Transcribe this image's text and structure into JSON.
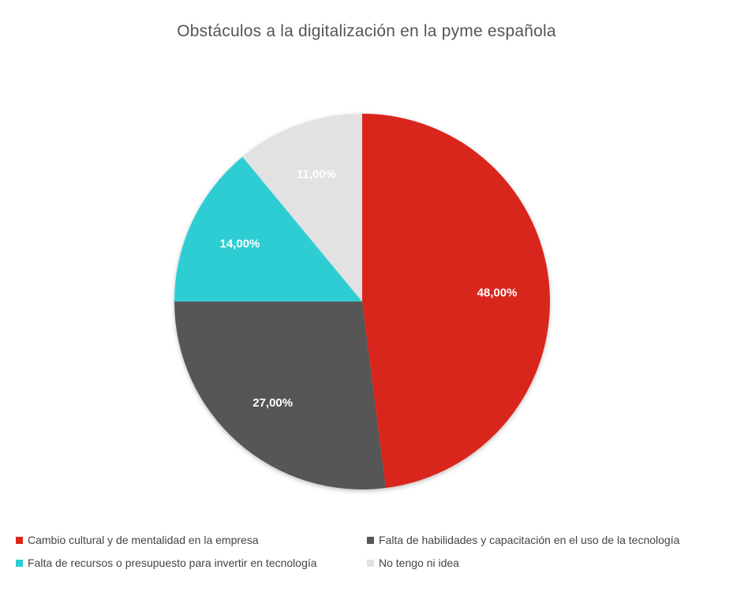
{
  "chart_data": {
    "type": "pie",
    "title": "Obstáculos a la digitalización en la pyme española",
    "slices": [
      {
        "name": "Cambio cultural y de mentalidad en la empresa",
        "value": 48.0,
        "label": "48,00%",
        "color": "#d9261c",
        "label_color": "#ffffff"
      },
      {
        "name": "Falta de habilidades y capacitación en el uso de la tecnología",
        "value": 27.0,
        "label": "27,00%",
        "color": "#575757",
        "label_color": "#ffffff"
      },
      {
        "name": "Falta de recursos o presupuesto para invertir en tecnología",
        "value": 14.0,
        "label": "14,00%",
        "color": "#2ecdd3",
        "label_color": "#ffffff"
      },
      {
        "name": "No tengo ni idea",
        "value": 11.0,
        "label": "11,00%",
        "color": "#e2e2e2",
        "label_color": "#ffffff"
      }
    ],
    "start": "12 o'clock",
    "direction": "clockwise",
    "legend_position": "bottom"
  }
}
